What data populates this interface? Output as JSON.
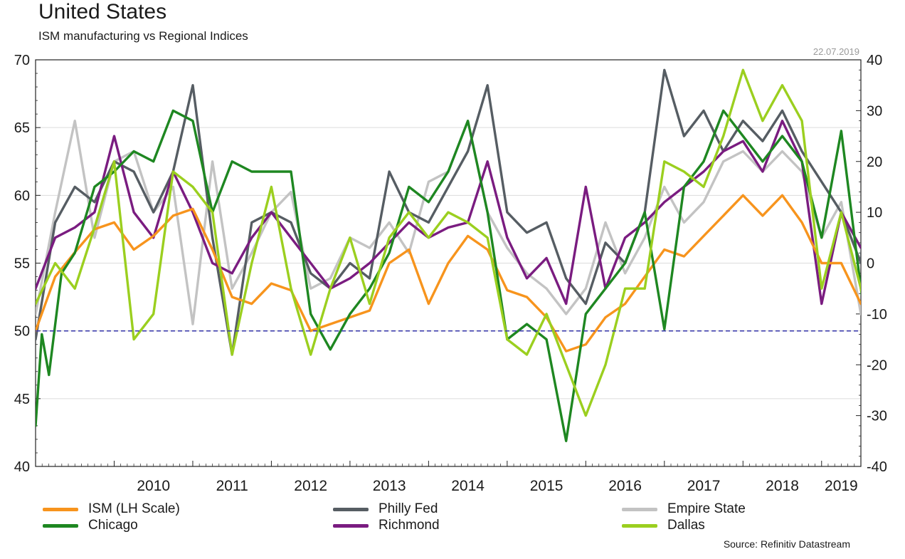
{
  "title": "United States",
  "subtitle": "ISM manufacturing vs Regional Indices",
  "date_stamp": "22.07.2019",
  "source": "Source: Refinitiv Datastream",
  "chart_data": {
    "type": "line",
    "x_tick_labels": [
      "2010",
      "2011",
      "2012",
      "2013",
      "2014",
      "2015",
      "2016",
      "2017",
      "2018",
      "2019"
    ],
    "x_start": 2009.0,
    "x_end": 2019.5,
    "y_left": {
      "min": 40,
      "max": 70,
      "ticks": [
        40,
        45,
        50,
        55,
        60,
        65,
        70
      ]
    },
    "y_right": {
      "min": -40,
      "max": 40,
      "ticks": [
        -40,
        -30,
        -20,
        -10,
        0,
        10,
        20,
        30,
        40
      ]
    },
    "reference_line": {
      "axis": "left",
      "value": 50,
      "style": "dashed",
      "color": "#3b3bab"
    },
    "grid": "horizontal",
    "series": [
      {
        "name": "Empire State",
        "axis": "right",
        "color": "#c3c3c3",
        "points": [
          [
            2009.0,
            -10
          ],
          [
            2009.25,
            10
          ],
          [
            2009.5,
            28
          ],
          [
            2009.75,
            5
          ],
          [
            2010.0,
            20
          ],
          [
            2010.25,
            22
          ],
          [
            2010.5,
            10
          ],
          [
            2010.75,
            15
          ],
          [
            2011.0,
            -12
          ],
          [
            2011.25,
            20
          ],
          [
            2011.5,
            -5
          ],
          [
            2011.75,
            2
          ],
          [
            2012.0,
            10
          ],
          [
            2012.25,
            14
          ],
          [
            2012.5,
            -5
          ],
          [
            2012.75,
            -3
          ],
          [
            2013.0,
            5
          ],
          [
            2013.25,
            3
          ],
          [
            2013.5,
            8
          ],
          [
            2013.75,
            2
          ],
          [
            2014.0,
            16
          ],
          [
            2014.25,
            18
          ],
          [
            2014.5,
            28
          ],
          [
            2014.75,
            10
          ],
          [
            2015.0,
            3
          ],
          [
            2015.25,
            -2
          ],
          [
            2015.5,
            -5
          ],
          [
            2015.75,
            -10
          ],
          [
            2016.0,
            -5
          ],
          [
            2016.25,
            8
          ],
          [
            2016.5,
            -2
          ],
          [
            2016.75,
            5
          ],
          [
            2017.0,
            15
          ],
          [
            2017.25,
            8
          ],
          [
            2017.5,
            12
          ],
          [
            2017.75,
            20
          ],
          [
            2018.0,
            22
          ],
          [
            2018.25,
            18
          ],
          [
            2018.5,
            22
          ],
          [
            2018.75,
            18
          ],
          [
            2019.0,
            5
          ],
          [
            2019.25,
            12
          ],
          [
            2019.5,
            -10
          ],
          [
            2019.58,
            4
          ]
        ]
      },
      {
        "name": "Philly Fed",
        "axis": "right",
        "color": "#565d63",
        "points": [
          [
            2009.0,
            -15
          ],
          [
            2009.25,
            8
          ],
          [
            2009.5,
            15
          ],
          [
            2009.75,
            12
          ],
          [
            2010.0,
            20
          ],
          [
            2010.25,
            18
          ],
          [
            2010.5,
            10
          ],
          [
            2010.75,
            18
          ],
          [
            2011.0,
            35
          ],
          [
            2011.25,
            5
          ],
          [
            2011.5,
            -18
          ],
          [
            2011.75,
            8
          ],
          [
            2012.0,
            10
          ],
          [
            2012.25,
            8
          ],
          [
            2012.5,
            -2
          ],
          [
            2012.75,
            -5
          ],
          [
            2013.0,
            0
          ],
          [
            2013.25,
            -3
          ],
          [
            2013.5,
            18
          ],
          [
            2013.75,
            10
          ],
          [
            2014.0,
            8
          ],
          [
            2014.25,
            15
          ],
          [
            2014.5,
            22
          ],
          [
            2014.75,
            35
          ],
          [
            2015.0,
            10
          ],
          [
            2015.25,
            6
          ],
          [
            2015.5,
            8
          ],
          [
            2015.75,
            -3
          ],
          [
            2016.0,
            -8
          ],
          [
            2016.25,
            4
          ],
          [
            2016.5,
            0
          ],
          [
            2016.75,
            10
          ],
          [
            2017.0,
            38
          ],
          [
            2017.25,
            25
          ],
          [
            2017.5,
            30
          ],
          [
            2017.75,
            22
          ],
          [
            2018.0,
            28
          ],
          [
            2018.25,
            24
          ],
          [
            2018.5,
            30
          ],
          [
            2018.75,
            22
          ],
          [
            2019.0,
            16
          ],
          [
            2019.25,
            10
          ],
          [
            2019.5,
            0
          ],
          [
            2019.58,
            22
          ]
        ]
      },
      {
        "name": "Richmond",
        "axis": "right",
        "color": "#7a1c80",
        "points": [
          [
            2009.0,
            -5
          ],
          [
            2009.25,
            5
          ],
          [
            2009.5,
            7
          ],
          [
            2009.75,
            10
          ],
          [
            2010.0,
            25
          ],
          [
            2010.25,
            10
          ],
          [
            2010.5,
            5
          ],
          [
            2010.75,
            18
          ],
          [
            2011.0,
            10
          ],
          [
            2011.25,
            0
          ],
          [
            2011.5,
            -2
          ],
          [
            2011.75,
            5
          ],
          [
            2012.0,
            10
          ],
          [
            2012.25,
            5
          ],
          [
            2012.5,
            0
          ],
          [
            2012.75,
            -5
          ],
          [
            2013.0,
            -3
          ],
          [
            2013.25,
            0
          ],
          [
            2013.5,
            4
          ],
          [
            2013.75,
            8
          ],
          [
            2014.0,
            5
          ],
          [
            2014.25,
            7
          ],
          [
            2014.5,
            8
          ],
          [
            2014.75,
            20
          ],
          [
            2015.0,
            5
          ],
          [
            2015.25,
            -3
          ],
          [
            2015.5,
            1
          ],
          [
            2015.75,
            -8
          ],
          [
            2016.0,
            15
          ],
          [
            2016.25,
            -5
          ],
          [
            2016.5,
            5
          ],
          [
            2016.75,
            8
          ],
          [
            2017.0,
            12
          ],
          [
            2017.25,
            15
          ],
          [
            2017.5,
            18
          ],
          [
            2017.75,
            22
          ],
          [
            2018.0,
            24
          ],
          [
            2018.25,
            18
          ],
          [
            2018.5,
            28
          ],
          [
            2018.75,
            20
          ],
          [
            2019.0,
            -8
          ],
          [
            2019.25,
            10
          ],
          [
            2019.5,
            3
          ],
          [
            2019.58,
            3
          ]
        ]
      },
      {
        "name": "ISM (LH Scale)",
        "axis": "left",
        "color": "#f7941d",
        "points": [
          [
            2009.0,
            50
          ],
          [
            2009.25,
            54
          ],
          [
            2009.5,
            55.8
          ],
          [
            2009.75,
            57.5
          ],
          [
            2010.0,
            58
          ],
          [
            2010.25,
            56
          ],
          [
            2010.5,
            57
          ],
          [
            2010.75,
            58.5
          ],
          [
            2011.0,
            59
          ],
          [
            2011.25,
            56
          ],
          [
            2011.5,
            52.5
          ],
          [
            2011.75,
            52
          ],
          [
            2012.0,
            53.5
          ],
          [
            2012.25,
            53
          ],
          [
            2012.5,
            50
          ],
          [
            2012.75,
            50.5
          ],
          [
            2013.0,
            51
          ],
          [
            2013.25,
            51.5
          ],
          [
            2013.5,
            55
          ],
          [
            2013.75,
            56
          ],
          [
            2014.0,
            52
          ],
          [
            2014.25,
            55
          ],
          [
            2014.5,
            57
          ],
          [
            2014.75,
            56
          ],
          [
            2015.0,
            53
          ],
          [
            2015.25,
            52.5
          ],
          [
            2015.5,
            51
          ],
          [
            2015.75,
            48.5
          ],
          [
            2016.0,
            49
          ],
          [
            2016.25,
            51
          ],
          [
            2016.5,
            52
          ],
          [
            2016.75,
            54
          ],
          [
            2017.0,
            56
          ],
          [
            2017.25,
            55.5
          ],
          [
            2017.5,
            57
          ],
          [
            2017.75,
            58.5
          ],
          [
            2018.0,
            60
          ],
          [
            2018.25,
            58.5
          ],
          [
            2018.5,
            60
          ],
          [
            2018.75,
            58
          ],
          [
            2019.0,
            55
          ],
          [
            2019.25,
            55
          ],
          [
            2019.5,
            52
          ],
          [
            2019.58,
            51.7
          ]
        ]
      },
      {
        "name": "Chicago",
        "axis": "right",
        "color": "#1e8721",
        "points": [
          [
            2009.0,
            -32
          ],
          [
            2009.08,
            -14
          ],
          [
            2009.17,
            -22
          ],
          [
            2009.33,
            -2
          ],
          [
            2009.5,
            2
          ],
          [
            2009.75,
            15
          ],
          [
            2010.0,
            18
          ],
          [
            2010.25,
            22
          ],
          [
            2010.5,
            20
          ],
          [
            2010.75,
            30
          ],
          [
            2011.0,
            28
          ],
          [
            2011.25,
            10
          ],
          [
            2011.5,
            20
          ],
          [
            2011.75,
            18
          ],
          [
            2012.0,
            18
          ],
          [
            2012.25,
            18
          ],
          [
            2012.5,
            -10
          ],
          [
            2012.75,
            -17
          ],
          [
            2013.0,
            -10
          ],
          [
            2013.25,
            -5
          ],
          [
            2013.5,
            2
          ],
          [
            2013.75,
            15
          ],
          [
            2014.0,
            12
          ],
          [
            2014.25,
            18
          ],
          [
            2014.5,
            28
          ],
          [
            2014.75,
            10
          ],
          [
            2015.0,
            -15
          ],
          [
            2015.25,
            -12
          ],
          [
            2015.5,
            -15
          ],
          [
            2015.75,
            -35
          ],
          [
            2016.0,
            -10
          ],
          [
            2016.25,
            -5
          ],
          [
            2016.5,
            0
          ],
          [
            2016.75,
            10
          ],
          [
            2017.0,
            -13
          ],
          [
            2017.25,
            15
          ],
          [
            2017.5,
            20
          ],
          [
            2017.75,
            30
          ],
          [
            2018.0,
            25
          ],
          [
            2018.25,
            20
          ],
          [
            2018.5,
            25
          ],
          [
            2018.75,
            20
          ],
          [
            2019.0,
            5
          ],
          [
            2019.25,
            26
          ],
          [
            2019.5,
            -5
          ],
          [
            2019.58,
            -13
          ]
        ]
      },
      {
        "name": "Dallas",
        "axis": "right",
        "color": "#9bcf1f",
        "points": [
          [
            2009.0,
            -8
          ],
          [
            2009.25,
            0
          ],
          [
            2009.5,
            -5
          ],
          [
            2009.75,
            7
          ],
          [
            2010.0,
            20
          ],
          [
            2010.25,
            -15
          ],
          [
            2010.5,
            -10
          ],
          [
            2010.75,
            18
          ],
          [
            2011.0,
            15
          ],
          [
            2011.25,
            10
          ],
          [
            2011.5,
            -18
          ],
          [
            2011.75,
            0
          ],
          [
            2012.0,
            15
          ],
          [
            2012.25,
            -5
          ],
          [
            2012.5,
            -18
          ],
          [
            2012.75,
            -5
          ],
          [
            2013.0,
            5
          ],
          [
            2013.25,
            -8
          ],
          [
            2013.5,
            5
          ],
          [
            2013.75,
            10
          ],
          [
            2014.0,
            5
          ],
          [
            2014.25,
            10
          ],
          [
            2014.5,
            8
          ],
          [
            2014.75,
            5
          ],
          [
            2015.0,
            -15
          ],
          [
            2015.25,
            -18
          ],
          [
            2015.5,
            -10
          ],
          [
            2015.75,
            -20
          ],
          [
            2016.0,
            -30
          ],
          [
            2016.25,
            -20
          ],
          [
            2016.5,
            -5
          ],
          [
            2016.75,
            -5
          ],
          [
            2017.0,
            20
          ],
          [
            2017.25,
            18
          ],
          [
            2017.5,
            15
          ],
          [
            2017.75,
            25
          ],
          [
            2018.0,
            38
          ],
          [
            2018.25,
            28
          ],
          [
            2018.5,
            35
          ],
          [
            2018.75,
            28
          ],
          [
            2019.0,
            -5
          ],
          [
            2019.25,
            10
          ],
          [
            2019.5,
            -5
          ],
          [
            2019.58,
            -10
          ]
        ]
      }
    ]
  },
  "legend": [
    {
      "label": "ISM (LH Scale)",
      "color": "#f7941d"
    },
    {
      "label": "Philly Fed",
      "color": "#565d63"
    },
    {
      "label": "Empire State",
      "color": "#c3c3c3"
    },
    {
      "label": "Chicago",
      "color": "#1e8721"
    },
    {
      "label": "Richmond",
      "color": "#7a1c80"
    },
    {
      "label": "Dallas",
      "color": "#9bcf1f"
    }
  ]
}
